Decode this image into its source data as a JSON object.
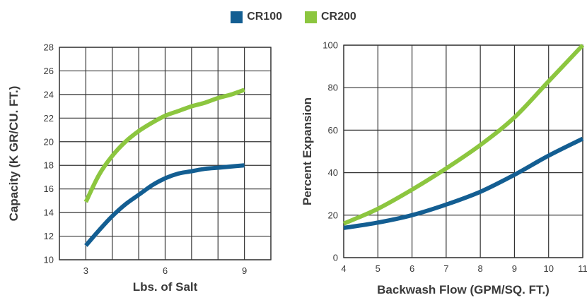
{
  "legend": [
    {
      "name": "CR100",
      "color": "#135e92"
    },
    {
      "name": "CR200",
      "color": "#8cc63f"
    }
  ],
  "chart_data": [
    {
      "type": "line",
      "xlabel": "Lbs. of Salt",
      "ylabel": "Capacity (K GR/CU. FT.)",
      "xlim": [
        2,
        10
      ],
      "ylim": [
        10,
        28
      ],
      "xticks": [
        "3",
        "6",
        "9"
      ],
      "yticks": [
        "10",
        "12",
        "14",
        "16",
        "18",
        "20",
        "22",
        "24",
        "26",
        "28"
      ],
      "grid": true,
      "series": [
        {
          "name": "CR100",
          "color": "#135e92",
          "x": [
            3,
            3.5,
            4,
            4.5,
            5,
            5.5,
            6,
            6.5,
            7,
            7.5,
            8,
            8.5,
            9
          ],
          "y": [
            11.2,
            12.5,
            13.7,
            14.7,
            15.5,
            16.3,
            16.9,
            17.3,
            17.5,
            17.7,
            17.8,
            17.9,
            18.0
          ]
        },
        {
          "name": "CR200",
          "color": "#8cc63f",
          "x": [
            3,
            3.5,
            4,
            4.5,
            5,
            5.5,
            6,
            6.5,
            7,
            7.5,
            8,
            8.5,
            9
          ],
          "y": [
            14.9,
            17.2,
            18.8,
            20.0,
            20.9,
            21.6,
            22.2,
            22.6,
            23.0,
            23.3,
            23.7,
            24.0,
            24.4
          ]
        }
      ]
    },
    {
      "type": "line",
      "xlabel": "Backwash Flow (GPM/SQ. FT.)",
      "ylabel": "Percent Expansion",
      "xlim": [
        4,
        11
      ],
      "ylim": [
        0,
        100
      ],
      "xticks": [
        "4",
        "5",
        "6",
        "7",
        "8",
        "9",
        "10",
        "11"
      ],
      "yticks": [
        "0",
        "20",
        "40",
        "60",
        "80",
        "100"
      ],
      "grid": true,
      "series": [
        {
          "name": "CR100",
          "color": "#135e92",
          "x": [
            4,
            5,
            6,
            7,
            8,
            9,
            10,
            11
          ],
          "y": [
            14,
            16.5,
            20,
            25,
            31,
            39,
            48,
            56
          ]
        },
        {
          "name": "CR200",
          "color": "#8cc63f",
          "x": [
            4,
            5,
            6,
            7,
            8,
            9,
            10,
            11
          ],
          "y": [
            16,
            23,
            32,
            42,
            53,
            66,
            83,
            100
          ]
        }
      ]
    }
  ]
}
